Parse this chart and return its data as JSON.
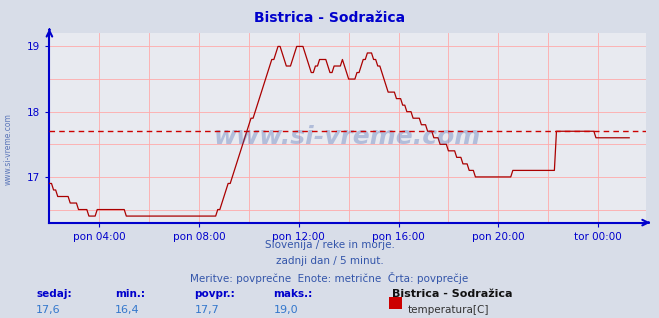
{
  "title": "Bistrica - Sodražica",
  "bg_color": "#d8dde8",
  "plot_bg_color": "#e8eaf0",
  "line_color": "#aa0000",
  "grid_color": "#ffaaaa",
  "axis_color": "#0000cc",
  "avg_line_color": "#cc0000",
  "avg_line_value": 17.7,
  "ylim": [
    16.3,
    19.2
  ],
  "yticks": [
    17,
    18,
    19
  ],
  "xlim": [
    0,
    287
  ],
  "xtick_positions": [
    24,
    72,
    120,
    168,
    216,
    264
  ],
  "xtick_labels": [
    "pon 04:00",
    "pon 08:00",
    "pon 12:00",
    "pon 16:00",
    "pon 20:00",
    "tor 00:00"
  ],
  "footer_line1": "Slovenija / reke in morje.",
  "footer_line2": "zadnji dan / 5 minut.",
  "footer_line3": "Meritve: povprečne  Enote: metrične  Črta: povprečje",
  "label_sedaj": "sedaj:",
  "label_min": "min.:",
  "label_povpr": "povpr.:",
  "label_maks": "maks.:",
  "val_sedaj": "17,6",
  "val_min": "16,4",
  "val_povpr": "17,7",
  "val_maks": "19,0",
  "legend_title": "Bistrica - Sodražica",
  "legend_label": "temperatura[C]",
  "legend_color": "#cc0000",
  "watermark": "www.si-vreme.com",
  "watermark_color": "#3355aa",
  "watermark_alpha": 0.3,
  "ylabel_text": "www.si-vreme.com",
  "ylabel_color": "#3355aa",
  "title_color": "#0000cc",
  "footer_color": "#3355aa",
  "data_values": [
    16.9,
    16.9,
    16.8,
    16.8,
    16.7,
    16.7,
    16.7,
    16.7,
    16.7,
    16.7,
    16.6,
    16.6,
    16.6,
    16.6,
    16.5,
    16.5,
    16.5,
    16.5,
    16.5,
    16.4,
    16.4,
    16.4,
    16.4,
    16.5,
    16.5,
    16.5,
    16.5,
    16.5,
    16.5,
    16.5,
    16.5,
    16.5,
    16.5,
    16.5,
    16.5,
    16.5,
    16.5,
    16.4,
    16.4,
    16.4,
    16.4,
    16.4,
    16.4,
    16.4,
    16.4,
    16.4,
    16.4,
    16.4,
    16.4,
    16.4,
    16.4,
    16.4,
    16.4,
    16.4,
    16.4,
    16.4,
    16.4,
    16.4,
    16.4,
    16.4,
    16.4,
    16.4,
    16.4,
    16.4,
    16.4,
    16.4,
    16.4,
    16.4,
    16.4,
    16.4,
    16.4,
    16.4,
    16.4,
    16.4,
    16.4,
    16.4,
    16.4,
    16.4,
    16.4,
    16.4,
    16.4,
    16.5,
    16.5,
    16.6,
    16.7,
    16.8,
    16.9,
    16.9,
    17.0,
    17.1,
    17.2,
    17.3,
    17.4,
    17.5,
    17.6,
    17.7,
    17.8,
    17.9,
    17.9,
    18.0,
    18.1,
    18.2,
    18.3,
    18.4,
    18.5,
    18.6,
    18.7,
    18.8,
    18.8,
    18.9,
    19.0,
    19.0,
    18.9,
    18.8,
    18.7,
    18.7,
    18.7,
    18.8,
    18.9,
    19.0,
    19.0,
    19.0,
    19.0,
    18.9,
    18.8,
    18.7,
    18.6,
    18.6,
    18.7,
    18.7,
    18.8,
    18.8,
    18.8,
    18.8,
    18.7,
    18.6,
    18.6,
    18.7,
    18.7,
    18.7,
    18.7,
    18.8,
    18.7,
    18.6,
    18.5,
    18.5,
    18.5,
    18.5,
    18.6,
    18.6,
    18.7,
    18.8,
    18.8,
    18.9,
    18.9,
    18.9,
    18.8,
    18.8,
    18.7,
    18.7,
    18.6,
    18.5,
    18.4,
    18.3,
    18.3,
    18.3,
    18.3,
    18.2,
    18.2,
    18.2,
    18.1,
    18.1,
    18.0,
    18.0,
    18.0,
    17.9,
    17.9,
    17.9,
    17.9,
    17.8,
    17.8,
    17.8,
    17.7,
    17.7,
    17.7,
    17.6,
    17.6,
    17.6,
    17.5,
    17.5,
    17.5,
    17.5,
    17.4,
    17.4,
    17.4,
    17.4,
    17.3,
    17.3,
    17.3,
    17.2,
    17.2,
    17.2,
    17.1,
    17.1,
    17.1,
    17.0,
    17.0,
    17.0,
    17.0,
    17.0,
    17.0,
    17.0,
    17.0,
    17.0,
    17.0,
    17.0,
    17.0,
    17.0,
    17.0,
    17.0,
    17.0,
    17.0,
    17.0,
    17.1,
    17.1,
    17.1,
    17.1,
    17.1,
    17.1,
    17.1,
    17.1,
    17.1,
    17.1,
    17.1,
    17.1,
    17.1,
    17.1,
    17.1,
    17.1,
    17.1,
    17.1,
    17.1,
    17.1,
    17.1,
    17.7,
    17.7,
    17.7,
    17.7,
    17.7,
    17.7,
    17.7,
    17.7,
    17.7,
    17.7,
    17.7,
    17.7,
    17.7,
    17.7,
    17.7,
    17.7,
    17.7,
    17.7,
    17.7,
    17.6,
    17.6,
    17.6,
    17.6,
    17.6,
    17.6,
    17.6,
    17.6,
    17.6,
    17.6,
    17.6,
    17.6,
    17.6,
    17.6,
    17.6,
    17.6,
    17.6
  ]
}
